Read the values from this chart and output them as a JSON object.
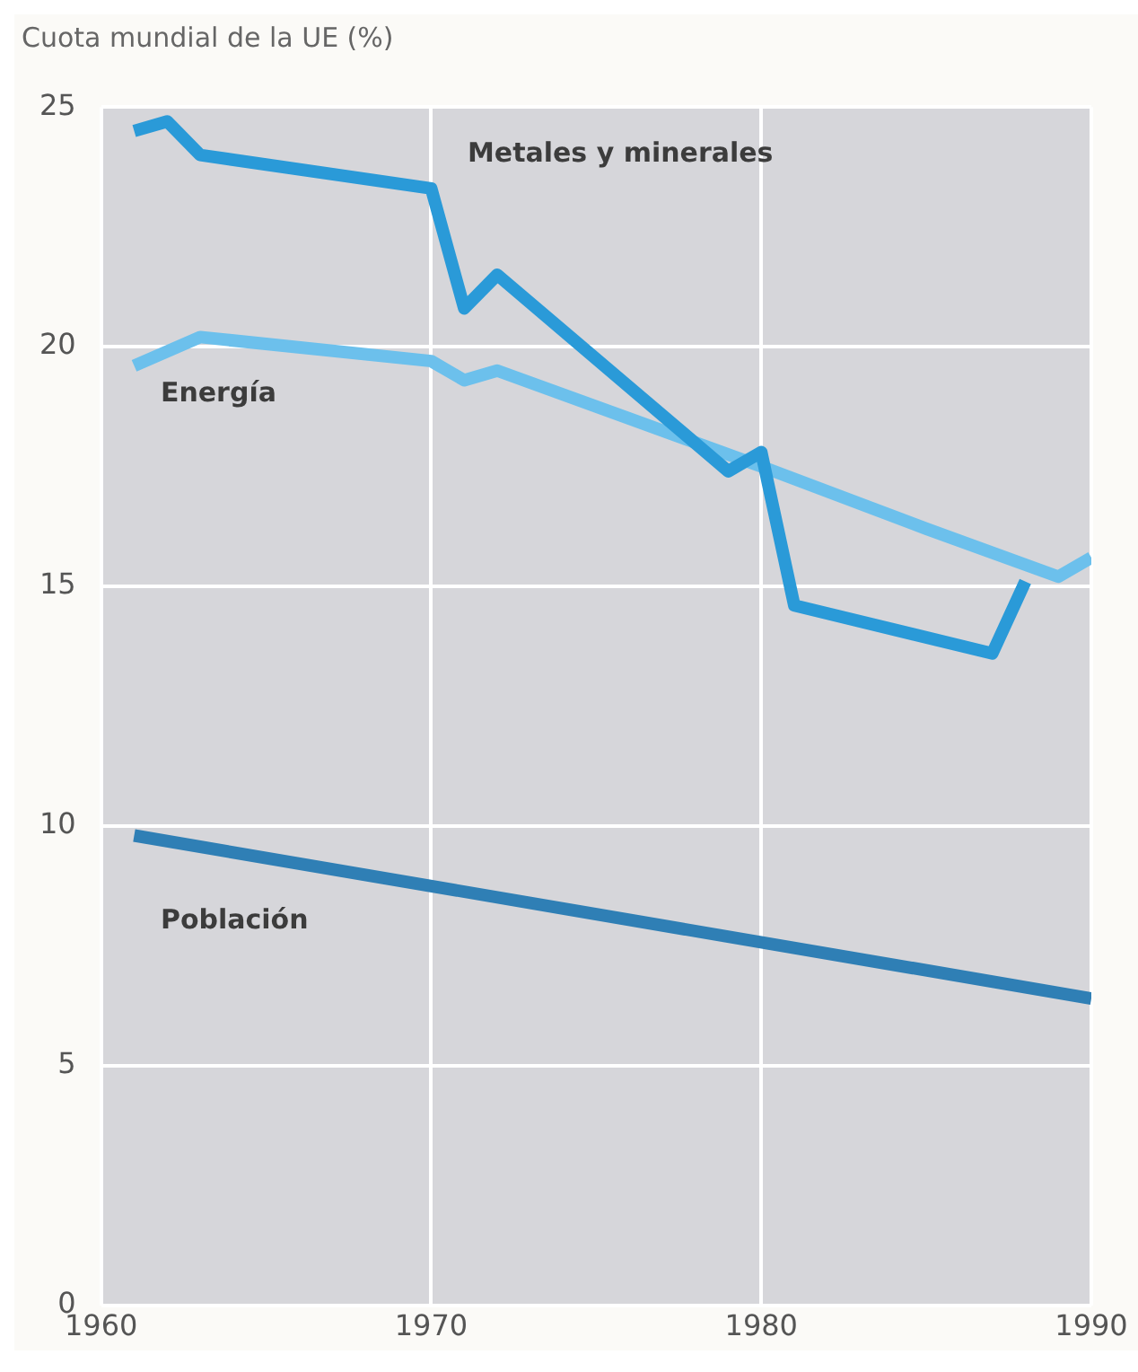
{
  "chart_data": {
    "type": "line",
    "ylabel": "Cuota mundial de la UE (%)",
    "xlim": [
      1960,
      1990
    ],
    "xticks": [
      1960,
      1970,
      1980,
      1990
    ],
    "ylim": [
      0,
      25
    ],
    "yticks": [
      0,
      5,
      10,
      15,
      20,
      25
    ],
    "grid": true,
    "legend": false,
    "marker": "none",
    "line_style": "solid",
    "series": [
      {
        "name": "Metales y minerales",
        "color": "#2a9ad8",
        "x": [
          1961,
          1962,
          1963,
          1970,
          1971,
          1972,
          1979,
          1980,
          1981,
          1987,
          1988
        ],
        "values": [
          24.5,
          24.7,
          24.0,
          23.3,
          20.8,
          21.5,
          17.4,
          17.8,
          14.6,
          13.6,
          15.1
        ]
      },
      {
        "name": "Energía",
        "color": "#6cc0ec",
        "x": [
          1961,
          1963,
          1970,
          1971,
          1972,
          1976,
          1980,
          1985,
          1989,
          1990
        ],
        "values": [
          19.6,
          20.2,
          19.7,
          19.3,
          19.5,
          18.5,
          17.5,
          16.2,
          15.2,
          15.6
        ]
      },
      {
        "name": "Población",
        "color": "#2f7fb5",
        "x": [
          1961,
          1990
        ],
        "values": [
          9.8,
          6.4
        ]
      }
    ]
  }
}
